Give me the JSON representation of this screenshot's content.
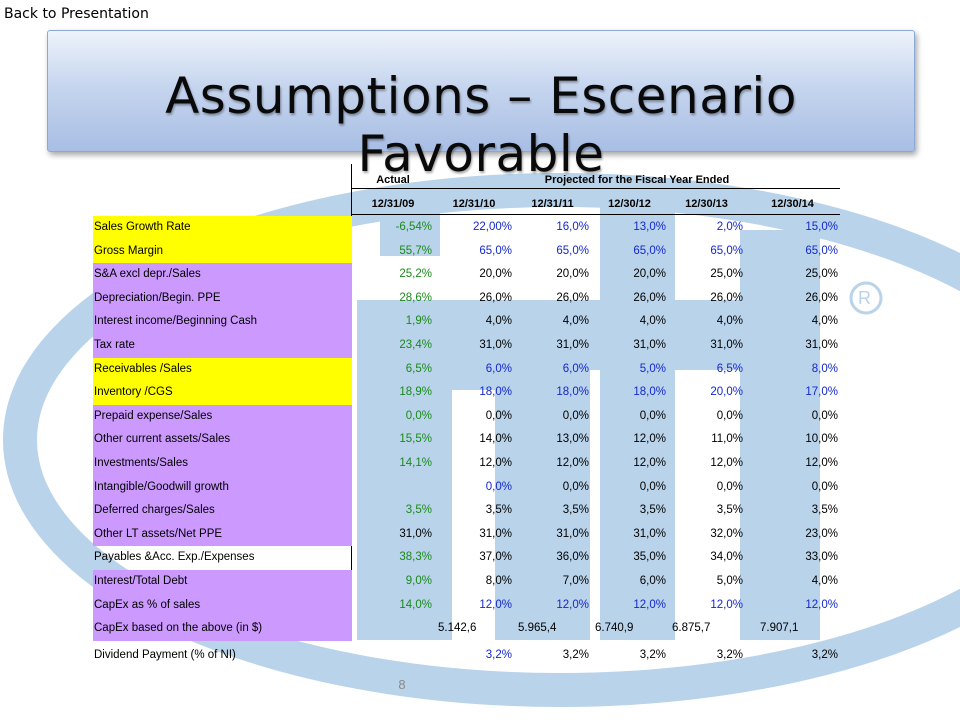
{
  "nav": {
    "back_label": "Back to Presentation"
  },
  "slide": {
    "title": "Assumptions – Escenario Favorable",
    "page_number": "8"
  },
  "colors": {
    "highlight_yellow": "#ffff00",
    "highlight_purple": "#cc99ff",
    "actual_green": "#1a8a1a",
    "input_blue": "#1428cc",
    "logo_blue": "#b9d3ea"
  },
  "table": {
    "header_actual": "Actual",
    "header_projected": "Projected for the Fiscal Year Ended",
    "dates": [
      "12/31/09",
      "12/31/10",
      "12/31/11",
      "12/30/12",
      "12/30/13",
      "12/30/14"
    ],
    "rows": [
      {
        "label": "Sales Growth Rate",
        "values": [
          "-6,54%",
          "22,00%",
          "16,0%",
          "13,0%",
          "2,0%",
          "15,0%"
        ]
      },
      {
        "label": "Gross Margin",
        "values": [
          "55,7%",
          "65,0%",
          "65,0%",
          "65,0%",
          "65,0%",
          "65,0%"
        ]
      },
      {
        "label": "S&A excl depr./Sales",
        "values": [
          "25,2%",
          "20,0%",
          "20,0%",
          "20,0%",
          "25,0%",
          "25,0%"
        ]
      },
      {
        "label": "Depreciation/Begin. PPE",
        "values": [
          "28,6%",
          "26,0%",
          "26,0%",
          "26,0%",
          "26,0%",
          "26,0%"
        ]
      },
      {
        "label": "Interest income/Beginning Cash",
        "values": [
          "1,9%",
          "4,0%",
          "4,0%",
          "4,0%",
          "4,0%",
          "4,0%"
        ]
      },
      {
        "label": "Tax rate",
        "values": [
          "23,4%",
          "31,0%",
          "31,0%",
          "31,0%",
          "31,0%",
          "31,0%"
        ]
      },
      {
        "label": "Receivables /Sales",
        "values": [
          "6,5%",
          "6,0%",
          "6,0%",
          "5,0%",
          "6,5%",
          "8,0%"
        ]
      },
      {
        "label": "Inventory /CGS",
        "values": [
          "18,9%",
          "18,0%",
          "18,0%",
          "18,0%",
          "20,0%",
          "17,0%"
        ]
      },
      {
        "label": "Prepaid expense/Sales",
        "values": [
          "0,0%",
          "0,0%",
          "0,0%",
          "0,0%",
          "0,0%",
          "0,0%"
        ]
      },
      {
        "label": "Other current assets/Sales",
        "values": [
          "15,5%",
          "14,0%",
          "13,0%",
          "12,0%",
          "11,0%",
          "10,0%"
        ]
      },
      {
        "label": "Investments/Sales",
        "values": [
          "14,1%",
          "12,0%",
          "12,0%",
          "12,0%",
          "12,0%",
          "12,0%"
        ]
      },
      {
        "label": "Intangible/Goodwill growth",
        "values": [
          "",
          "0,0%",
          "0,0%",
          "0,0%",
          "0,0%",
          "0,0%"
        ]
      },
      {
        "label": "Deferred charges/Sales",
        "values": [
          "3,5%",
          "3,5%",
          "3,5%",
          "3,5%",
          "3,5%",
          "3,5%"
        ]
      },
      {
        "label": "Other LT  assets/Net PPE",
        "values": [
          "31,0%",
          "31,0%",
          "31,0%",
          "31,0%",
          "32,0%",
          "23,0%"
        ]
      },
      {
        "label": "Payables &Acc. Exp./Expenses",
        "values": [
          "38,3%",
          "37,0%",
          "36,0%",
          "35,0%",
          "34,0%",
          "33,0%"
        ]
      },
      {
        "label": "Interest/Total Debt",
        "values": [
          "9,0%",
          "8,0%",
          "7,0%",
          "6,0%",
          "5,0%",
          "4,0%"
        ]
      },
      {
        "label": "CapEx as % of sales",
        "values": [
          "14,0%",
          "12,0%",
          "12,0%",
          "12,0%",
          "12,0%",
          "12,0%"
        ]
      },
      {
        "label": "CapEx based on the above (in $)",
        "values": [
          "",
          "5.142,6",
          "5.965,4",
          "6.740,9",
          "6.875,7",
          "7.907,1"
        ]
      },
      {
        "label": "Dividend Payment (% of NI)",
        "values": [
          "",
          "3,2%",
          "3,2%",
          "3,2%",
          "3,2%",
          "3,2%"
        ]
      }
    ]
  }
}
